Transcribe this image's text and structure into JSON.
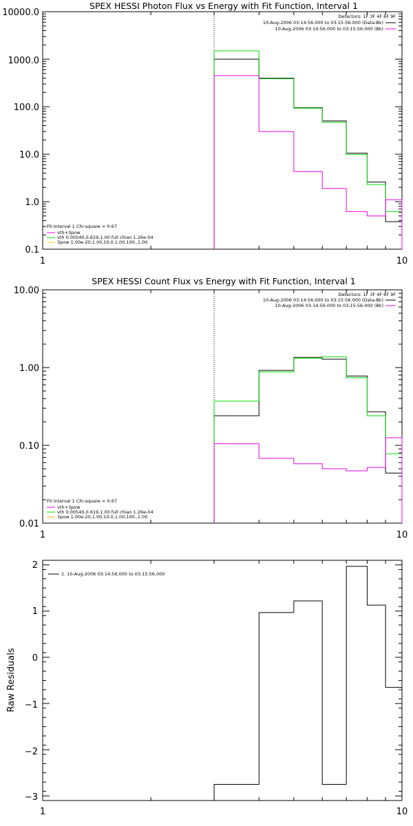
{
  "chart_data": [
    {
      "type": "line",
      "step": true,
      "title": "SPEX HESSI Photon Flux vs Energy with Fit Function, Interval 1",
      "xlabel": "",
      "ylabel": "",
      "xscale": "log",
      "yscale": "log",
      "xlim": [
        1,
        10
      ],
      "ylim": [
        0.1,
        10000
      ],
      "x_tick_labels": [
        "1",
        "10"
      ],
      "y_tick_labels": [
        "10000.0",
        "1000.0",
        "100.0",
        "10.0",
        "1.0",
        "0.1"
      ],
      "vline_x": 3.0,
      "top_legend": [
        "Detectors: 1F 3F 4F 6F 9F",
        "10-Aug-2006 03:14:56.000 to 03:15:56.000 (Data-Bk)",
        "10-Aug-2006 03:14:56.000 to 03:15:56.000 (Bk)"
      ],
      "fit_legend": {
        "header": "Fit Interval 1   Chi-square = 0.67",
        "entries": [
          "vth+3pow",
          "vth 0.00540,0.619,1.00   full chian 1.26e-04",
          "3pow 1.00e-20,1.00,10.0,1.00,100.,1.00"
        ]
      },
      "bin_edges": [
        3.0,
        4.0,
        5.0,
        6.0,
        7.0,
        8.0,
        9.0,
        10.0
      ],
      "series": [
        {
          "name": "10-Aug-2006 03:14:56.000 to 03:15:56.000 (Data-Bk)",
          "color": "#000000",
          "values": [
            1000,
            400,
            95,
            50,
            10.5,
            2.6,
            0.38
          ]
        },
        {
          "name": "vth+3pow",
          "color": "#00dd00",
          "values": [
            1500,
            390,
            93,
            47,
            9.8,
            2.3,
            0.62
          ]
        },
        {
          "name": "10-Aug-2006 03:14:56.000 to 03:15:56.000 (Bk)",
          "color": "#ee00ee",
          "values": [
            450,
            30,
            4.3,
            1.9,
            0.62,
            0.5,
            1.1
          ]
        }
      ]
    },
    {
      "type": "line",
      "step": true,
      "title": "SPEX HESSI Count Flux vs Energy with Fit Function, Interval 1",
      "xlabel": "",
      "ylabel": "",
      "xscale": "log",
      "yscale": "log",
      "xlim": [
        1,
        10
      ],
      "ylim": [
        0.01,
        10
      ],
      "x_tick_labels": [
        "1",
        "10"
      ],
      "y_tick_labels": [
        "10.00",
        "1.00",
        "0.10",
        "0.01"
      ],
      "vline_x": 3.0,
      "top_legend": [
        "Detectors: 1F 3F 4F 6F 9F",
        "10-Aug-2006 03:14:56.000 to 03:15:56.000 (Data-Bk)",
        "10-Aug-2006 03:14:56.000 to 03:15:56.000 (Bk)"
      ],
      "fit_legend": {
        "header": "Fit Interval 1   Chi-square = 0.67",
        "entries": [
          "vth+3pow",
          "vth 0.00540,0.619,1.00   full chian 1.26e-04",
          "3pow 1.00e-20,1.00,10.0,1.00,100.,1.00"
        ]
      },
      "bin_edges": [
        3.0,
        4.0,
        5.0,
        6.0,
        7.0,
        8.0,
        9.0,
        10.0
      ],
      "series": [
        {
          "name": "10-Aug-2006 03:14:56.000 to 03:15:56.000 (Data-Bk)",
          "color": "#000000",
          "values": [
            0.24,
            0.92,
            1.35,
            1.28,
            0.78,
            0.27,
            0.044
          ]
        },
        {
          "name": "vth+3pow",
          "color": "#00dd00",
          "values": [
            0.37,
            0.88,
            1.32,
            1.38,
            0.74,
            0.24,
            0.078
          ]
        },
        {
          "name": "10-Aug-2006 03:14:56.000 to 03:15:56.000 (Bk)",
          "color": "#ee00ee",
          "values": [
            0.105,
            0.068,
            0.058,
            0.05,
            0.047,
            0.052,
            0.125
          ]
        }
      ]
    },
    {
      "type": "line",
      "step": true,
      "title": "",
      "xlabel": "",
      "ylabel": "Raw Residuals",
      "xscale": "log",
      "yscale": "linear",
      "xlim": [
        1,
        10
      ],
      "ylim": [
        -3.1,
        2.1
      ],
      "x_tick_labels": [
        "1",
        "10"
      ],
      "y_tick_labels": [
        "2",
        "1",
        "0",
        "−1",
        "−2",
        "−3"
      ],
      "legend": [
        "1. 10-Aug-2006 03:14:56.000 to 03:15:56.000"
      ],
      "bin_edges": [
        3.0,
        4.0,
        5.0,
        6.0,
        7.0,
        8.0,
        9.0,
        10.0
      ],
      "series": [
        {
          "name": "1. 10-Aug-2006 03:14:56.000 to 03:15:56.000",
          "color": "#000000",
          "values": [
            -2.75,
            0.97,
            1.22,
            -2.75,
            1.97,
            1.13,
            -0.65
          ]
        }
      ]
    }
  ]
}
